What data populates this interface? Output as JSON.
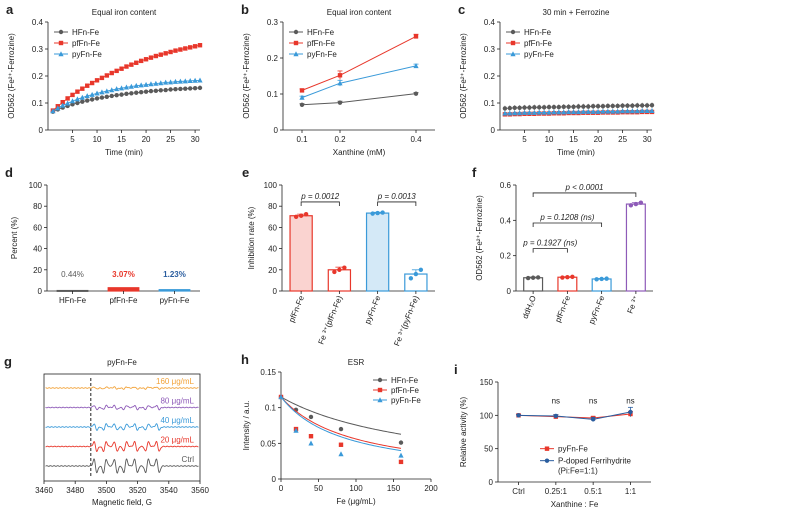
{
  "colors": {
    "gray": "#5a5a5a",
    "red": "#e8372b",
    "blue": "#3a9ad9",
    "navy": "#2a5d9f",
    "purple": "#8e5bb8",
    "orange": "#f2a33a",
    "black": "#222222"
  },
  "chart_data": [
    {
      "id": "a",
      "panel_label": "a",
      "type": "line",
      "title": "Equal iron content",
      "xlabel": "Time (min)",
      "ylabel": "OD562 (Fe²⁺-Ferrozine)",
      "xlim": [
        0,
        31
      ],
      "ylim": [
        0,
        0.4
      ],
      "xticks": [
        5,
        10,
        15,
        20,
        25,
        30
      ],
      "yticks": [
        0,
        0.1,
        0.2,
        0.3,
        0.4
      ],
      "x": [
        1,
        2,
        3,
        4,
        5,
        6,
        7,
        8,
        9,
        10,
        11,
        12,
        13,
        14,
        15,
        16,
        17,
        18,
        19,
        20,
        21,
        22,
        23,
        24,
        25,
        26,
        27,
        28,
        29,
        30,
        31
      ],
      "series": [
        {
          "name": "HFn-Fe",
          "color": "gray",
          "values": [
            0.068,
            0.076,
            0.083,
            0.089,
            0.095,
            0.1,
            0.105,
            0.109,
            0.113,
            0.117,
            0.12,
            0.123,
            0.126,
            0.129,
            0.131,
            0.134,
            0.136,
            0.138,
            0.14,
            0.142,
            0.144,
            0.145,
            0.147,
            0.148,
            0.15,
            0.151,
            0.152,
            0.153,
            0.154,
            0.155,
            0.156
          ]
        },
        {
          "name": "pfFn-Fe",
          "color": "red",
          "values": [
            0.072,
            0.088,
            0.103,
            0.117,
            0.13,
            0.142,
            0.153,
            0.164,
            0.174,
            0.184,
            0.193,
            0.202,
            0.211,
            0.219,
            0.227,
            0.235,
            0.242,
            0.249,
            0.256,
            0.262,
            0.268,
            0.274,
            0.279,
            0.284,
            0.289,
            0.294,
            0.298,
            0.302,
            0.306,
            0.31,
            0.314
          ]
        },
        {
          "name": "pyFn-Fe",
          "color": "blue",
          "values": [
            0.07,
            0.081,
            0.091,
            0.099,
            0.107,
            0.114,
            0.12,
            0.126,
            0.131,
            0.136,
            0.14,
            0.144,
            0.148,
            0.152,
            0.155,
            0.158,
            0.161,
            0.164,
            0.166,
            0.168,
            0.17,
            0.172,
            0.174,
            0.176,
            0.177,
            0.179,
            0.18,
            0.181,
            0.182,
            0.183,
            0.184
          ]
        }
      ]
    },
    {
      "id": "b",
      "panel_label": "b",
      "type": "line",
      "title": "Equal iron content",
      "xlabel": "Xanthine (mM)",
      "ylabel": "OD562 (Fe²⁺-Ferrozine)",
      "xlim": [
        0.05,
        0.45
      ],
      "ylim": [
        0,
        0.3
      ],
      "xticks": [
        0.1,
        0.2,
        0.4
      ],
      "xtick_labels": [
        "0.1",
        "0.2",
        "0.4"
      ],
      "yticks": [
        0,
        0.1,
        0.2,
        0.3
      ],
      "x": [
        0.1,
        0.2,
        0.4
      ],
      "series": [
        {
          "name": "HFn-Fe",
          "color": "gray",
          "values": [
            0.07,
            0.076,
            0.101
          ],
          "errors": [
            0.003,
            0.004,
            0.003
          ]
        },
        {
          "name": "pfFn-Fe",
          "color": "red",
          "values": [
            0.11,
            0.152,
            0.26
          ],
          "errors": [
            0.004,
            0.012,
            0.006
          ]
        },
        {
          "name": "pyFn-Fe",
          "color": "blue",
          "values": [
            0.09,
            0.13,
            0.178
          ],
          "errors": [
            0.004,
            0.008,
            0.005
          ]
        }
      ]
    },
    {
      "id": "c",
      "panel_label": "c",
      "type": "line",
      "title": "30 min + Ferrozine",
      "xlabel": "Time (min)",
      "ylabel": "OD562 (Fe²⁺-Ferrozine)",
      "xlim": [
        0,
        31
      ],
      "ylim": [
        0,
        0.4
      ],
      "xticks": [
        5,
        10,
        15,
        20,
        25,
        30
      ],
      "yticks": [
        0,
        0.1,
        0.2,
        0.3,
        0.4
      ],
      "x": [
        1,
        2,
        3,
        4,
        5,
        6,
        7,
        8,
        9,
        10,
        11,
        12,
        13,
        14,
        15,
        16,
        17,
        18,
        19,
        20,
        21,
        22,
        23,
        24,
        25,
        26,
        27,
        28,
        29,
        30,
        31
      ],
      "series": [
        {
          "name": "HFn-Fe",
          "color": "gray",
          "values": [
            0.08,
            0.081,
            0.082,
            0.082,
            0.083,
            0.083,
            0.084,
            0.084,
            0.084,
            0.085,
            0.085,
            0.085,
            0.086,
            0.086,
            0.086,
            0.087,
            0.087,
            0.087,
            0.088,
            0.088,
            0.088,
            0.089,
            0.089,
            0.089,
            0.09,
            0.09,
            0.09,
            0.091,
            0.091,
            0.091,
            0.092
          ],
          "error": 0.01
        },
        {
          "name": "pfFn-Fe",
          "color": "red",
          "values": [
            0.058,
            0.058,
            0.059,
            0.059,
            0.06,
            0.06,
            0.06,
            0.061,
            0.061,
            0.061,
            0.062,
            0.062,
            0.062,
            0.063,
            0.063,
            0.063,
            0.064,
            0.064,
            0.064,
            0.064,
            0.065,
            0.065,
            0.065,
            0.065,
            0.066,
            0.066,
            0.066,
            0.066,
            0.067,
            0.067,
            0.067
          ],
          "error": 0.004
        },
        {
          "name": "pyFn-Fe",
          "color": "blue",
          "values": [
            0.062,
            0.062,
            0.063,
            0.063,
            0.064,
            0.064,
            0.064,
            0.065,
            0.065,
            0.065,
            0.066,
            0.066,
            0.066,
            0.067,
            0.067,
            0.067,
            0.068,
            0.068,
            0.068,
            0.068,
            0.069,
            0.069,
            0.069,
            0.069,
            0.07,
            0.07,
            0.07,
            0.07,
            0.071,
            0.071,
            0.071
          ],
          "error": 0.004
        }
      ]
    },
    {
      "id": "d",
      "panel_label": "d",
      "type": "bar",
      "ylabel": "Percent  (%)",
      "ylim": [
        0,
        100
      ],
      "yticks": [
        0,
        20,
        40,
        60,
        80,
        100
      ],
      "categories": [
        "HFn-Fe",
        "pfFn-Fe",
        "pyFn-Fe"
      ],
      "values": [
        0.44,
        3.07,
        1.23
      ],
      "data_labels": [
        "0.44%",
        "3.07%",
        "1.23%"
      ],
      "label_colors": [
        "gray",
        "red",
        "navy"
      ],
      "bar_colors": [
        "gray",
        "red",
        "blue"
      ]
    },
    {
      "id": "e",
      "panel_label": "e",
      "type": "bar",
      "ylabel": "Inhibition rate (%)",
      "ylim": [
        0,
        100
      ],
      "yticks": [
        0,
        20,
        40,
        60,
        80,
        100
      ],
      "categories": [
        "pfFn-Fe",
        "Fe ³⁺(pfFn-Fe)",
        "pyFn-Fe",
        "Fe ³⁺(pyFn-Fe)"
      ],
      "values": [
        71,
        20,
        73.5,
        16
      ],
      "errors": [
        1.5,
        2.5,
        0.8,
        4
      ],
      "points": [
        [
          70,
          71,
          72.5
        ],
        [
          18,
          20,
          22
        ],
        [
          73,
          73.5,
          74
        ],
        [
          12,
          16,
          20
        ]
      ],
      "bar_colors": [
        "red",
        "red",
        "blue",
        "blue"
      ],
      "filled": [
        true,
        false,
        true,
        false
      ],
      "annotations": [
        {
          "text": "p = 0.0012",
          "from": 0,
          "to": 1,
          "y": 84
        },
        {
          "text": "p = 0.0013",
          "from": 2,
          "to": 3,
          "y": 84
        }
      ]
    },
    {
      "id": "f",
      "panel_label": "f",
      "type": "bar",
      "ylabel": "OD562 (Fe²⁺-Ferrozine)",
      "ylim": [
        0,
        0.6
      ],
      "yticks": [
        0,
        0.2,
        0.4,
        0.6
      ],
      "categories": [
        "ddH₂O",
        "pfFn-Fe",
        "pyFn-Fe",
        "Fe ³⁺"
      ],
      "values": [
        0.075,
        0.078,
        0.068,
        0.492
      ],
      "errors": [
        0.004,
        0.003,
        0.003,
        0.008
      ],
      "points": [
        [
          0.073,
          0.075,
          0.077
        ],
        [
          0.076,
          0.078,
          0.08
        ],
        [
          0.066,
          0.068,
          0.07
        ],
        [
          0.485,
          0.492,
          0.5
        ]
      ],
      "bar_colors": [
        "gray",
        "red",
        "blue",
        "purple"
      ],
      "annotations": [
        {
          "text": "p < 0.0001",
          "from": 0,
          "to": 3,
          "y": 0.555
        },
        {
          "text": "p = 0.1208 (ns)",
          "from": 0,
          "to": 2,
          "y": 0.385
        },
        {
          "text": "p = 0.1927 (ns)",
          "from": 0,
          "to": 1,
          "y": 0.24
        }
      ]
    },
    {
      "id": "g",
      "panel_label": "g",
      "type": "line",
      "title": "pyFn-Fe",
      "xlabel": "Magnetic field, G",
      "xlim": [
        3460,
        3560
      ],
      "xticks": [
        3460,
        3480,
        3500,
        3520,
        3540,
        3560
      ],
      "dashed_x": 3490,
      "series": [
        {
          "name": "160 μg/mL",
          "color": "orange"
        },
        {
          "name": "80 μg/mL",
          "color": "purple"
        },
        {
          "name": "40 μg/mL",
          "color": "blue"
        },
        {
          "name": "20 μg/mL",
          "color": "red"
        },
        {
          "name": "Ctrl",
          "color": "gray"
        }
      ],
      "amplitudes": [
        0.15,
        0.3,
        0.45,
        0.7,
        1.0
      ]
    },
    {
      "id": "h",
      "panel_label": "h",
      "type": "scatter",
      "title": "ESR",
      "xlabel": "Fe (μg/mL)",
      "ylabel": "Intensity / a.u.",
      "xlim": [
        0,
        200
      ],
      "ylim": [
        0,
        0.15
      ],
      "xticks": [
        0,
        50,
        100,
        150,
        200
      ],
      "yticks": [
        0,
        0.05,
        0.1,
        0.15
      ],
      "x": [
        0,
        20,
        40,
        80,
        160
      ],
      "series": [
        {
          "name": "HFn-Fe",
          "color": "gray",
          "values": [
            0.115,
            0.097,
            0.087,
            0.07,
            0.051
          ],
          "fit": [
            0.115,
            0.0052
          ]
        },
        {
          "name": "pfFn-Fe",
          "color": "red",
          "values": [
            0.115,
            0.07,
            0.06,
            0.048,
            0.024
          ],
          "fit": [
            0.115,
            0.0105
          ]
        },
        {
          "name": "pyFn-Fe",
          "color": "blue",
          "values": [
            0.115,
            0.068,
            0.05,
            0.035,
            0.033
          ],
          "fit": [
            0.115,
            0.0118
          ]
        }
      ]
    },
    {
      "id": "i",
      "panel_label": "i",
      "type": "line",
      "xlabel": "Xanthine : Fe",
      "ylabel": "Relative activity (%)",
      "categories": [
        "Ctrl",
        "0.25:1",
        "0.5:1",
        "1:1"
      ],
      "ylim": [
        0,
        150
      ],
      "yticks": [
        0,
        50,
        100,
        150
      ],
      "series": [
        {
          "name": "pyFn-Fe",
          "color": "red",
          "values": [
            100,
            98,
            96,
            102
          ],
          "errors": [
            1,
            3,
            2,
            4
          ]
        },
        {
          "name": "P-doped Ferrihydrite (Pi:Fe=1:1)",
          "color": "navy",
          "values": [
            100,
            99,
            94,
            105
          ],
          "errors": [
            1,
            2,
            3,
            7
          ]
        }
      ],
      "annotations": [
        "",
        "ns",
        "ns",
        "ns"
      ]
    }
  ]
}
